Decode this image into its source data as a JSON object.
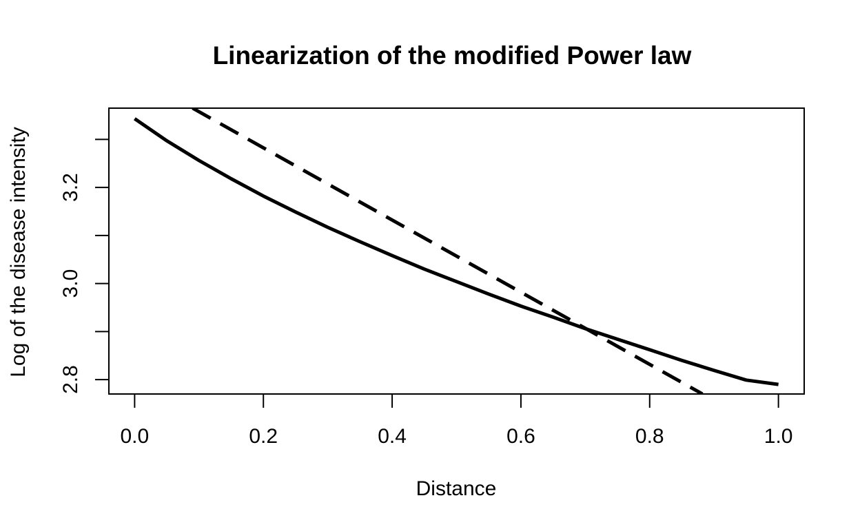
{
  "chart_data": {
    "type": "line",
    "title": "Linearization of the modified Power law",
    "xlabel": "Distance",
    "ylabel": "Log of the disease intensity",
    "xlim": [
      -0.04,
      1.04
    ],
    "ylim": [
      2.77,
      3.365
    ],
    "xticks": [
      0.0,
      0.2,
      0.4,
      0.6,
      0.8,
      1.0
    ],
    "xtick_labels": [
      "0.0",
      "0.2",
      "0.4",
      "0.6",
      "0.8",
      "1.0"
    ],
    "yticks": [
      2.8,
      2.9,
      3.0,
      3.1,
      3.2,
      3.3
    ],
    "ytick_labels": [
      "2.8",
      "",
      "3.0",
      "",
      "3.2",
      ""
    ],
    "grid": false,
    "legend": "none",
    "series": [
      {
        "style": "solid",
        "x": [
          0.0,
          0.05,
          0.1,
          0.15,
          0.2,
          0.25,
          0.3,
          0.35,
          0.4,
          0.45,
          0.5,
          0.55,
          0.6,
          0.65,
          0.7,
          0.75,
          0.8,
          0.85,
          0.9,
          0.95,
          1.0
        ],
        "y": [
          3.343,
          3.297,
          3.256,
          3.218,
          3.182,
          3.149,
          3.117,
          3.087,
          3.058,
          3.03,
          3.004,
          2.978,
          2.953,
          2.93,
          2.906,
          2.884,
          2.862,
          2.84,
          2.819,
          2.799,
          2.79
        ]
      },
      {
        "style": "dashed",
        "x": [
          0.09,
          0.882
        ],
        "y": [
          3.365,
          2.77
        ]
      }
    ]
  }
}
